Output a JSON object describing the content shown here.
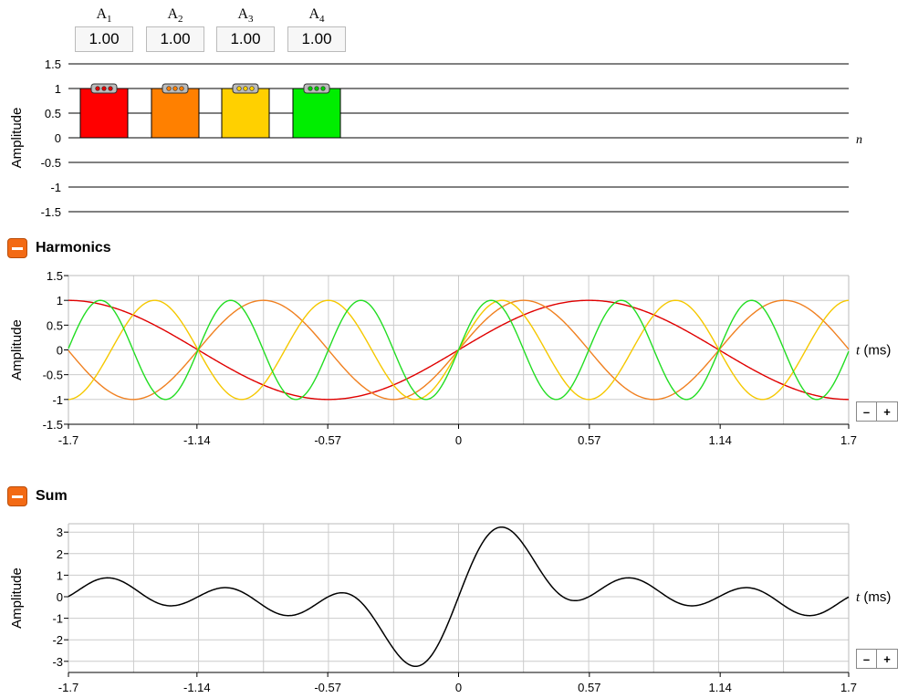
{
  "amplitudes": [
    {
      "label": "A",
      "sub": "1",
      "value": "1.00",
      "color": "#ff0000",
      "dot": "#e00000"
    },
    {
      "label": "A",
      "sub": "2",
      "value": "1.00",
      "color": "#ff8000",
      "dot": "#ff8000"
    },
    {
      "label": "A",
      "sub": "3",
      "value": "1.00",
      "color": "#ffd000",
      "dot": "#ffd000"
    },
    {
      "label": "A",
      "sub": "4",
      "value": "1.00",
      "color": "#00ee00",
      "dot": "#00c800"
    }
  ],
  "spectrum": {
    "ylabel": "Amplitude",
    "xlabel": "n",
    "ticks": [
      "1.5",
      "1",
      "0.5",
      "0",
      "-0.5",
      "-1",
      "-1.5"
    ]
  },
  "harmonics_section": {
    "title": "Harmonics",
    "toggle_icon": "minus-icon"
  },
  "sum_section": {
    "title": "Sum",
    "toggle_icon": "minus-icon"
  },
  "zoom": {
    "minus": "–",
    "plus": "+"
  },
  "chart_data": [
    {
      "type": "line",
      "title": "Harmonics",
      "ylabel": "Amplitude",
      "xlabel": "t (ms)",
      "xlim": [
        -1.7,
        1.7
      ],
      "ylim": [
        -1.5,
        1.5
      ],
      "x_ticks": [
        "-1.7",
        "-1.14",
        "-0.57",
        "0",
        "0.57",
        "1.14",
        "1.7"
      ],
      "y_ticks": [
        "1.5",
        "1",
        "0.5",
        "0",
        "-0.5",
        "-1",
        "-1.5"
      ],
      "grid": true,
      "fundamental_period_ms": 2.27,
      "series": [
        {
          "harmonic": 1,
          "amplitude": 1.0,
          "color": "#e00000"
        },
        {
          "harmonic": 2,
          "amplitude": 1.0,
          "color": "#f08020"
        },
        {
          "harmonic": 3,
          "amplitude": 1.0,
          "color": "#f5c800"
        },
        {
          "harmonic": 4,
          "amplitude": 1.0,
          "color": "#22dd22"
        }
      ]
    },
    {
      "type": "line",
      "title": "Sum",
      "ylabel": "Amplitude",
      "xlabel": "t (ms)",
      "xlim": [
        -1.7,
        1.7
      ],
      "ylim": [
        -3.3,
        3.3
      ],
      "x_ticks": [
        "-1.7",
        "-1.14",
        "-0.57",
        "0",
        "0.57",
        "1.14",
        "1.7"
      ],
      "y_ticks": [
        "3",
        "2",
        "1",
        "0",
        "-1",
        "-2",
        "-3"
      ],
      "grid": true,
      "series": [
        {
          "color": "#000000",
          "components": [
            1,
            2,
            3,
            4
          ]
        }
      ]
    }
  ]
}
